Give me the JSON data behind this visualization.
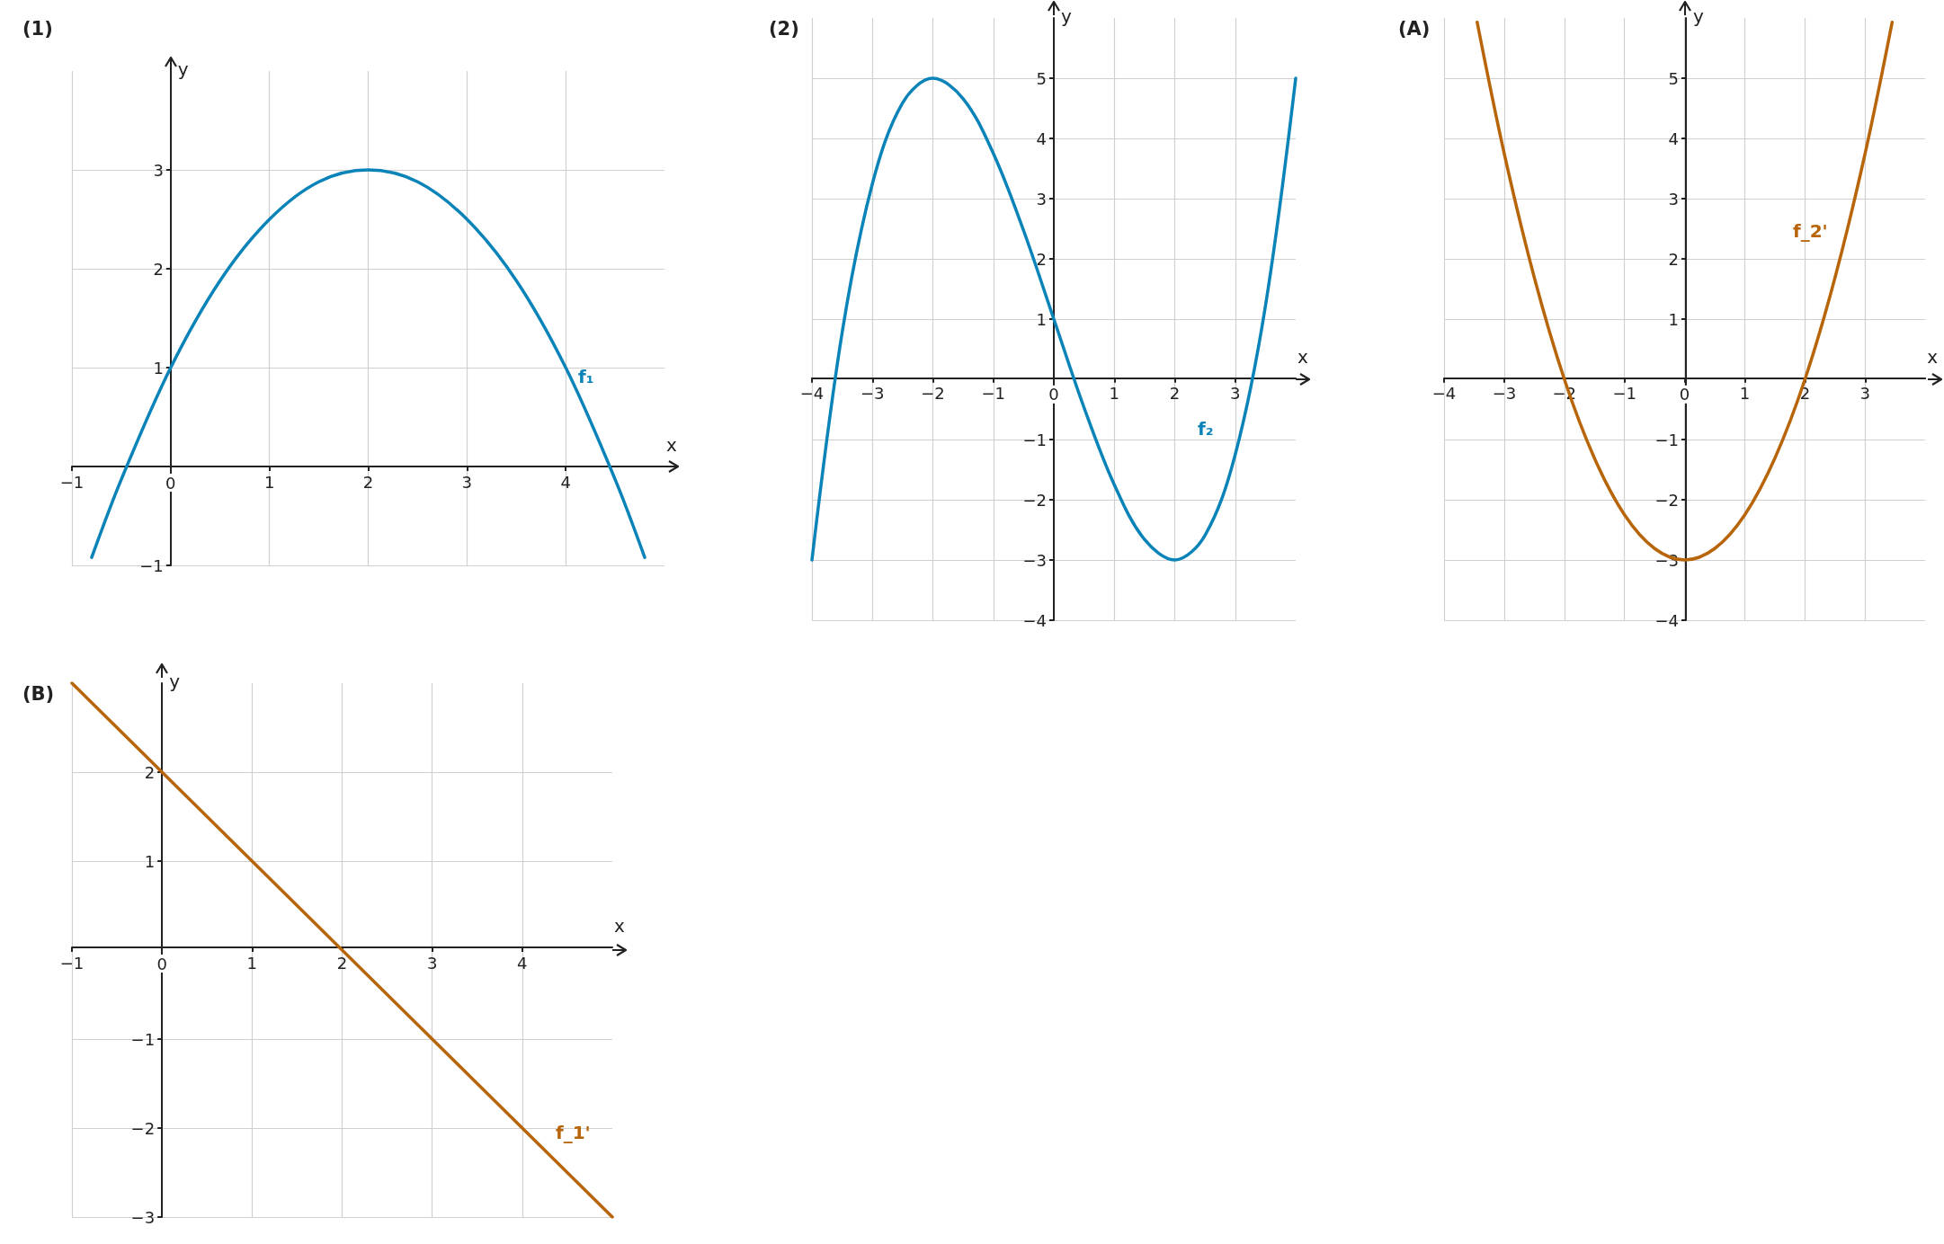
{
  "chart_data": [
    {
      "type": "line",
      "title": "(1)",
      "xlabel": "x",
      "ylabel": "y",
      "xlim": [
        -1,
        5
      ],
      "ylim": [
        -1,
        4
      ],
      "xticks": [
        -1,
        0,
        1,
        2,
        3,
        4
      ],
      "yticks": [
        -1,
        1,
        2,
        3
      ],
      "grid": true,
      "marker": "none",
      "line_style": "solid",
      "series": [
        {
          "name": "f₁",
          "color": "#0a84b8",
          "x": [
            -0.8,
            -0.5,
            0,
            0.5,
            1,
            1.5,
            2,
            2.5,
            3,
            3.5,
            4,
            4.5,
            4.8
          ],
          "values": [
            -0.92,
            -0.13,
            1,
            1.88,
            2.5,
            2.88,
            3,
            2.88,
            2.5,
            1.88,
            1,
            -0.13,
            -0.92
          ]
        }
      ],
      "legend": false
    },
    {
      "type": "line",
      "title": "(2)",
      "xlabel": "x",
      "ylabel": "y",
      "xlim": [
        -4,
        4
      ],
      "ylim": [
        -4,
        6
      ],
      "xticks": [
        -4,
        -3,
        -2,
        -1,
        0,
        1,
        2,
        3
      ],
      "yticks": [
        -4,
        -3,
        -2,
        -1,
        1,
        2,
        3,
        4,
        5
      ],
      "grid": true,
      "marker": "none",
      "line_style": "solid",
      "series": [
        {
          "name": "f₂",
          "color": "#0a84b8",
          "x": [
            -4,
            -3.5,
            -3,
            -2.5,
            -2,
            -1.5,
            -1,
            -0.5,
            0,
            0.5,
            1,
            1.5,
            2,
            2.5,
            3,
            3.5,
            4
          ],
          "values": [
            -3,
            0.78,
            3.25,
            4.59,
            5,
            4.66,
            3.75,
            2.47,
            1,
            -0.47,
            -1.75,
            -2.66,
            -3,
            -2.59,
            -1.25,
            1.22,
            5
          ]
        }
      ],
      "legend": false
    },
    {
      "type": "line",
      "title": "(A)",
      "xlabel": "x",
      "ylabel": "y",
      "xlim": [
        -4,
        4
      ],
      "ylim": [
        -4,
        6
      ],
      "xticks": [
        -4,
        -3,
        -2,
        -1,
        0,
        1,
        2,
        3
      ],
      "yticks": [
        -4,
        -3,
        -2,
        -1,
        1,
        2,
        3,
        4,
        5
      ],
      "grid": true,
      "marker": "none",
      "line_style": "solid",
      "series": [
        {
          "name": "f_2'",
          "color": "#b8650a",
          "x": [
            -3.45,
            -3,
            -2.5,
            -2,
            -1.5,
            -1,
            -0.5,
            0,
            0.5,
            1,
            1.5,
            2,
            2.5,
            3,
            3.45
          ],
          "values": [
            5.93,
            3.75,
            1.69,
            0,
            -1.31,
            -2.25,
            -2.81,
            -3,
            -2.81,
            -2.25,
            -1.31,
            0,
            1.69,
            3.75,
            5.93
          ]
        }
      ],
      "legend": false
    },
    {
      "type": "line",
      "title": "(B)",
      "xlabel": "x",
      "ylabel": "y",
      "xlim": [
        -1,
        5
      ],
      "ylim": [
        -3,
        3
      ],
      "xticks": [
        -1,
        0,
        1,
        2,
        3,
        4
      ],
      "yticks": [
        -3,
        -2,
        -1,
        1,
        2
      ],
      "grid": true,
      "marker": "none",
      "line_style": "solid",
      "series": [
        {
          "name": "f_1'",
          "color": "#b8650a",
          "x": [
            -1,
            0,
            1,
            2,
            3,
            4,
            5
          ],
          "values": [
            3,
            2,
            1,
            0,
            -1,
            -2,
            -3
          ]
        }
      ],
      "legend": false
    }
  ]
}
